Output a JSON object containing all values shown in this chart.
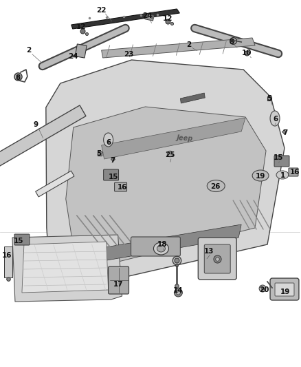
{
  "bg_color": "#ffffff",
  "fig_width": 4.38,
  "fig_height": 5.33,
  "dpi": 100,
  "upper_labels": [
    [
      "22",
      148,
      518
    ],
    [
      "24",
      215,
      510
    ],
    [
      "12",
      245,
      506
    ],
    [
      "12",
      118,
      494
    ],
    [
      "2",
      42,
      460
    ],
    [
      "8",
      26,
      420
    ],
    [
      "9",
      52,
      352
    ],
    [
      "23",
      188,
      454
    ],
    [
      "24",
      107,
      451
    ],
    [
      "2",
      275,
      468
    ],
    [
      "8",
      338,
      472
    ],
    [
      "10",
      360,
      456
    ],
    [
      "5",
      393,
      390
    ],
    [
      "5",
      144,
      310
    ],
    [
      "6",
      402,
      360
    ],
    [
      "6",
      158,
      326
    ],
    [
      "7",
      416,
      340
    ],
    [
      "7",
      164,
      300
    ],
    [
      "15",
      406,
      304
    ],
    [
      "15",
      165,
      276
    ],
    [
      "16",
      430,
      283
    ],
    [
      "16",
      178,
      261
    ],
    [
      "25",
      248,
      308
    ],
    [
      "26",
      314,
      262
    ],
    [
      "19",
      380,
      277
    ],
    [
      "1",
      412,
      278
    ]
  ],
  "lower_labels": [
    [
      "15",
      27,
      183
    ],
    [
      "16",
      10,
      162
    ],
    [
      "17",
      173,
      120
    ],
    [
      "18",
      237,
      178
    ],
    [
      "13",
      305,
      168
    ],
    [
      "14",
      260,
      111
    ],
    [
      "20",
      385,
      112
    ],
    [
      "19",
      416,
      109
    ]
  ]
}
